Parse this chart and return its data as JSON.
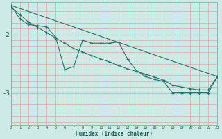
{
  "xlabel": "Humidex (Indice chaleur)",
  "bg_color": "#cdeae6",
  "line_color": "#2a706a",
  "grid_v_color": "#d4a8a8",
  "grid_h_color": "#a8cccc",
  "xlim": [
    0,
    23
  ],
  "ylim": [
    -3.55,
    -1.45
  ],
  "yticks": [
    -3,
    -2
  ],
  "ytick_labels": [
    "-3",
    "-2"
  ],
  "xticks": [
    0,
    1,
    2,
    3,
    4,
    5,
    6,
    7,
    8,
    9,
    10,
    11,
    12,
    13,
    14,
    15,
    16,
    17,
    18,
    19,
    20,
    21,
    22,
    23
  ],
  "line1_x": [
    0,
    1,
    2,
    3,
    4,
    5,
    6,
    7,
    8,
    9,
    10,
    11,
    12,
    13,
    14,
    15,
    16,
    17,
    18,
    19,
    20,
    21,
    22,
    23
  ],
  "line1_y": [
    -1.5,
    -1.73,
    -1.83,
    -1.85,
    -1.87,
    -2.05,
    -2.6,
    -2.55,
    -2.1,
    -2.15,
    -2.15,
    -2.15,
    -2.13,
    -2.42,
    -2.62,
    -2.72,
    -2.77,
    -2.8,
    -3.0,
    -3.0,
    -3.0,
    -3.0,
    -3.0,
    -2.72
  ],
  "line2_x": [
    0,
    1,
    2,
    3,
    4,
    5,
    6,
    7,
    8,
    9,
    10,
    11,
    12,
    13,
    14,
    15,
    16,
    17,
    18,
    19,
    20,
    21,
    22,
    23
  ],
  "line2_y": [
    -1.53,
    -1.66,
    -1.79,
    -1.88,
    -1.97,
    -2.06,
    -2.15,
    -2.24,
    -2.3,
    -2.36,
    -2.42,
    -2.47,
    -2.53,
    -2.59,
    -2.63,
    -2.68,
    -2.73,
    -2.78,
    -2.87,
    -2.9,
    -2.93,
    -2.95,
    -2.95,
    -2.72
  ],
  "line3_x": [
    0,
    23
  ],
  "line3_y": [
    -1.5,
    -2.72
  ]
}
